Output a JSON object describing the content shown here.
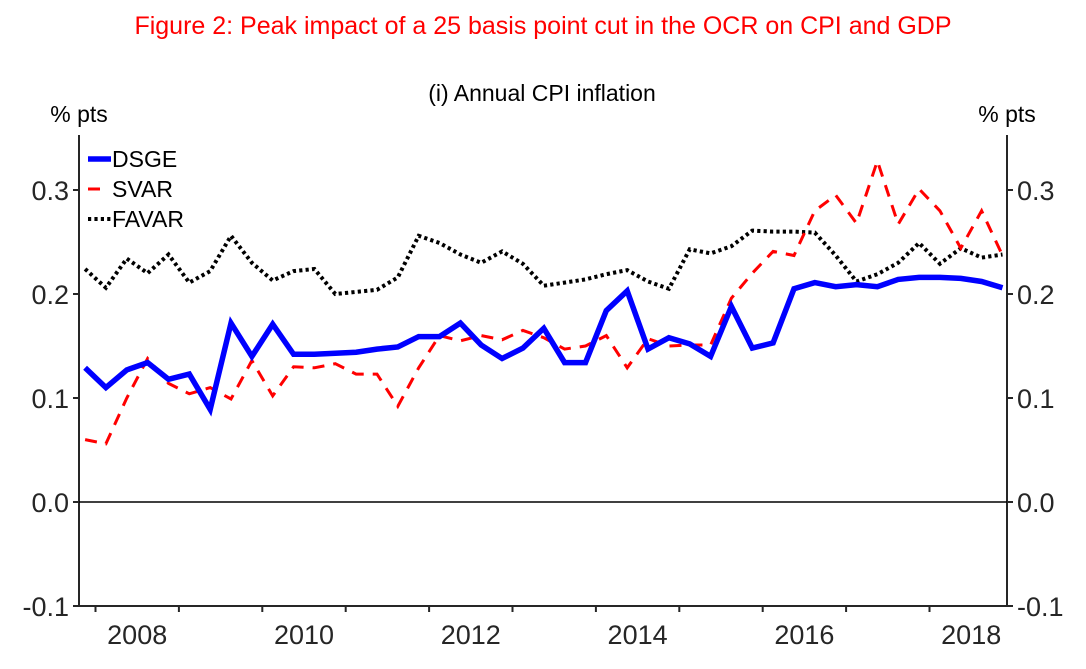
{
  "figure_title": "Figure 2: Peak impact of a 25 basis point cut in the OCR on CPI and GDP",
  "chart_data": {
    "type": "line",
    "title": "(i) Annual CPI inflation",
    "xlabel": "",
    "ylabel_left": "% pts",
    "ylabel_right": "% pts",
    "x_start": "2007Q4",
    "x_end": "2018Q4",
    "frequency": "quarterly",
    "xlim": [
      2007.8,
      2018.95
    ],
    "xticks": [
      2008,
      2009,
      2010,
      2011,
      2012,
      2013,
      2014,
      2015,
      2016,
      2017,
      2018
    ],
    "xtick_labels": [
      "2008",
      "2010",
      "2012",
      "2014",
      "2016",
      "2018"
    ],
    "ylim": [
      -0.1,
      0.35
    ],
    "yticks": [
      -0.1,
      0.0,
      0.1,
      0.2,
      0.3
    ],
    "ytick_labels": [
      "-0.1",
      "0.0",
      "0.1",
      "0.2",
      "0.3"
    ],
    "zero_line": true,
    "grid": false,
    "legend_position": "top-left",
    "series": [
      {
        "name": "DSGE",
        "color": "#0000ff",
        "style": "solid",
        "values": [
          0.129,
          0.11,
          0.127,
          0.134,
          0.118,
          0.123,
          0.089,
          0.172,
          0.14,
          0.171,
          0.142,
          0.142,
          0.143,
          0.144,
          0.147,
          0.149,
          0.159,
          0.159,
          0.172,
          0.151,
          0.138,
          0.148,
          0.167,
          0.134,
          0.134,
          0.184,
          0.203,
          0.147,
          0.158,
          0.152,
          0.14,
          0.188,
          0.148,
          0.153,
          0.205,
          0.211,
          0.207,
          0.209,
          0.207,
          0.214,
          0.216,
          0.216,
          0.215,
          0.212,
          0.206
        ]
      },
      {
        "name": "SVAR",
        "color": "#ff0000",
        "style": "dashed",
        "values": [
          0.06,
          0.056,
          0.1,
          0.138,
          0.114,
          0.104,
          0.11,
          0.099,
          0.136,
          0.102,
          0.13,
          0.129,
          0.133,
          0.123,
          0.123,
          0.092,
          0.129,
          0.16,
          0.155,
          0.16,
          0.156,
          0.165,
          0.158,
          0.147,
          0.15,
          0.16,
          0.129,
          0.157,
          0.15,
          0.151,
          0.151,
          0.196,
          0.22,
          0.241,
          0.237,
          0.28,
          0.295,
          0.268,
          0.328,
          0.267,
          0.301,
          0.28,
          0.244,
          0.28,
          0.237
        ]
      },
      {
        "name": "FAVAR",
        "color": "#000000",
        "style": "dotted",
        "values": [
          0.224,
          0.206,
          0.234,
          0.22,
          0.238,
          0.211,
          0.222,
          0.256,
          0.23,
          0.213,
          0.222,
          0.224,
          0.2,
          0.202,
          0.204,
          0.216,
          0.256,
          0.249,
          0.238,
          0.23,
          0.241,
          0.229,
          0.208,
          0.211,
          0.214,
          0.219,
          0.223,
          0.212,
          0.205,
          0.243,
          0.239,
          0.246,
          0.261,
          0.26,
          0.26,
          0.259,
          0.237,
          0.212,
          0.219,
          0.23,
          0.249,
          0.229,
          0.244,
          0.235,
          0.238
        ]
      }
    ]
  }
}
